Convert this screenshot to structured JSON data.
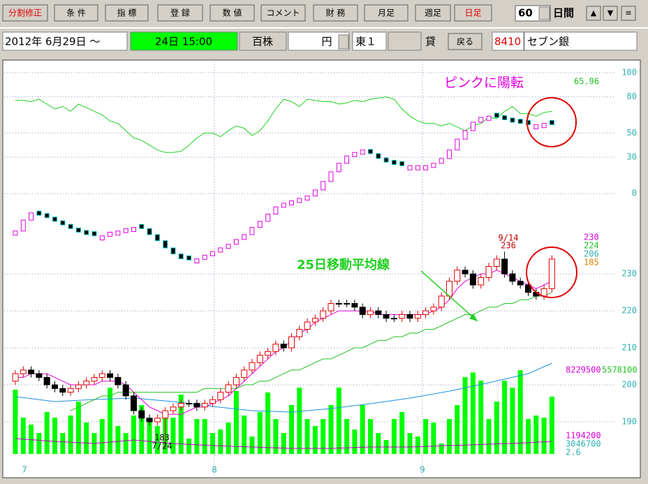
{
  "toolbar": {
    "buttons": [
      "分割修正",
      "条 件",
      "指 標",
      "登 録",
      "数 値",
      "コメント",
      "財 務",
      "月足",
      "週足",
      "日足"
    ],
    "period": "60",
    "period_unit": "日間",
    "arrows": [
      "▲",
      "▼",
      "≡"
    ]
  },
  "infobar": {
    "date": "2012年 6月29日 ～",
    "time": "24日 15:00",
    "unit": "百株",
    "currency": "円",
    "market": "東１",
    "lending": "貸",
    "back": "戻る",
    "code": "8410",
    "name": "セブン銀"
  },
  "chart": {
    "annotation": "ピンクに陽転",
    "upper_value_label": 65.96,
    "upper_lim": [
      -56,
      100
    ],
    "upper_ticks": [
      100,
      80,
      50,
      30,
      0
    ],
    "price_lim": [
      181.3,
      247.4
    ],
    "price_ticks": [
      230,
      220,
      210,
      200,
      190
    ],
    "price_labels": [
      230,
      224,
      206,
      185
    ],
    "ma_annotation": "25日移動平均線",
    "high_note": {
      "date": "9/14",
      "value": 236
    },
    "low_note": {
      "value": 183,
      "date": "7/24"
    },
    "x_labels": [
      "7",
      "8",
      "9"
    ],
    "candles": {
      "open": [
        201,
        203,
        204,
        203,
        202,
        200,
        199,
        198,
        199,
        200,
        201,
        202,
        203,
        202,
        200,
        197,
        193,
        191,
        190,
        191,
        193,
        194,
        195,
        195,
        194,
        195,
        196,
        198,
        200,
        202,
        204,
        206,
        208,
        209,
        211,
        210,
        213,
        215,
        217,
        218,
        220,
        222,
        222,
        222,
        221,
        219,
        220,
        219,
        218,
        218,
        219,
        218,
        219,
        220,
        221,
        224,
        228,
        231,
        230,
        227,
        229,
        232,
        234,
        230,
        228,
        227,
        225,
        224,
        226
      ],
      "high": [
        204,
        205,
        205,
        204,
        203,
        201,
        200,
        200,
        201,
        202,
        203,
        204,
        204,
        203,
        201,
        198,
        194,
        192,
        192,
        194,
        195,
        196,
        196,
        196,
        196,
        197,
        199,
        201,
        203,
        205,
        207,
        209,
        210,
        212,
        212,
        214,
        216,
        218,
        219,
        221,
        223,
        223,
        223,
        223,
        222,
        221,
        221,
        220,
        219,
        220,
        220,
        220,
        221,
        222,
        225,
        229,
        232,
        232,
        231,
        230,
        233,
        235,
        236,
        231,
        229,
        228,
        226,
        227,
        235
      ],
      "low": [
        200,
        202,
        202,
        201,
        199,
        198,
        197,
        197,
        198,
        199,
        200,
        201,
        201,
        199,
        196,
        192,
        190,
        189,
        189,
        183,
        192,
        193,
        194,
        193,
        193,
        194,
        195,
        197,
        199,
        201,
        203,
        205,
        207,
        208,
        209,
        209,
        212,
        214,
        216,
        217,
        219,
        221,
        221,
        220,
        218,
        218,
        218,
        217,
        217,
        217,
        217,
        217,
        218,
        219,
        220,
        223,
        227,
        229,
        226,
        226,
        228,
        231,
        229,
        227,
        226,
        224,
        223,
        223,
        225
      ],
      "close": [
        203,
        204,
        203,
        202,
        200,
        199,
        198,
        199,
        200,
        201,
        202,
        203,
        202,
        200,
        197,
        193,
        191,
        190,
        191,
        193,
        194,
        195,
        195,
        194,
        195,
        196,
        198,
        200,
        202,
        204,
        206,
        208,
        209,
        211,
        210,
        213,
        215,
        217,
        218,
        220,
        222,
        222,
        222,
        221,
        219,
        220,
        219,
        218,
        218,
        219,
        218,
        219,
        220,
        221,
        224,
        228,
        231,
        230,
        227,
        229,
        232,
        234,
        230,
        228,
        227,
        225,
        224,
        226,
        234
      ]
    },
    "boxes": [
      -31,
      -22,
      -16,
      -18,
      -20,
      -23,
      -26,
      -29,
      -32,
      -34,
      -35,
      -35,
      -32,
      -31,
      -29,
      -28,
      -29,
      -34,
      -39,
      -45,
      -50,
      -54,
      -55,
      -54,
      -51,
      -48,
      -45,
      -42,
      -38,
      -34,
      -28,
      -23,
      -17,
      -11,
      -8,
      -6,
      -4,
      -2,
      3,
      10,
      18,
      25,
      31,
      34,
      36,
      33,
      29,
      26,
      24,
      23,
      23,
      23,
      23,
      25,
      29,
      36,
      45,
      52,
      59,
      63,
      64,
      63,
      61,
      59,
      58,
      57,
      57,
      58,
      57
    ],
    "stoch": [
      77,
      77,
      76,
      78,
      74,
      70,
      72,
      68,
      74,
      71,
      68,
      65,
      60,
      58,
      52,
      46,
      44,
      40,
      36,
      34,
      34,
      35,
      40,
      46,
      50,
      50,
      47,
      52,
      56,
      54,
      48,
      52,
      60,
      70,
      78,
      76,
      72,
      78,
      77,
      76,
      76,
      74,
      75,
      77,
      76,
      78,
      79,
      80,
      78,
      70,
      64,
      60,
      58,
      58,
      56,
      58,
      55,
      52,
      56,
      58,
      63,
      62,
      68,
      72,
      66,
      66,
      64,
      67,
      68
    ],
    "ma_short": [
      202,
      202,
      203,
      203,
      203,
      202,
      201,
      200,
      200,
      200,
      200,
      201,
      201,
      201,
      200,
      198,
      196,
      194,
      193,
      192,
      192,
      192,
      193,
      194,
      194,
      195,
      196,
      197,
      199,
      201,
      203,
      205,
      207,
      209,
      210,
      212,
      214,
      215,
      217,
      218,
      219,
      220,
      220,
      220,
      220,
      220,
      219,
      219,
      219,
      219,
      219,
      219,
      219,
      220,
      221,
      223,
      226,
      228,
      229,
      230,
      230,
      231,
      230,
      229,
      228,
      227,
      226,
      227,
      228
    ],
    "ma_long": [
      null,
      null,
      null,
      null,
      null,
      null,
      null,
      193,
      194,
      195,
      196,
      197,
      197,
      198,
      198,
      198,
      198,
      198,
      198,
      198,
      198,
      198,
      198,
      198,
      199,
      199,
      199,
      199,
      199,
      200,
      200,
      201,
      201,
      202,
      203,
      204,
      204,
      205,
      206,
      207,
      207,
      208,
      209,
      210,
      210,
      211,
      212,
      212,
      213,
      213,
      214,
      214,
      215,
      215,
      216,
      217,
      218,
      219,
      219,
      220,
      221,
      221,
      222,
      222,
      223,
      223,
      224,
      224,
      225
    ],
    "vlim": [
      0,
      8229500
    ],
    "volume": [
      6311000,
      3567000,
      2881000,
      2058000,
      4116000,
      3567000,
      2058000,
      3773000,
      5145000,
      3087000,
      2058000,
      3430000,
      6517000,
      2744000,
      2058000,
      3773000,
      4802000,
      3430000,
      2744000,
      4116000,
      3567000,
      5831000,
      1509000,
      3430000,
      3430000,
      2058000,
      2401000,
      3087000,
      6174000,
      3773000,
      1715000,
      4116000,
      6037000,
      3430000,
      2058000,
      4802000,
      6517000,
      3430000,
      2744000,
      3430000,
      4802000,
      6517000,
      3430000,
      2401000,
      4802000,
      3430000,
      2058000,
      1372000,
      3430000,
      4116000,
      2058000,
      1715000,
      3430000,
      3087000,
      1029000,
      3430000,
      4802000,
      7546000,
      8000000,
      7203000,
      3430000,
      5145000,
      7203000,
      6517000,
      8229500,
      3430000,
      3773000,
      3567000,
      5625000
    ],
    "vol_labels": [
      8229500,
      5578100,
      1194200,
      3046700,
      2.6
    ],
    "vol_ma": {
      "x": [
        0,
        5,
        10,
        15,
        20,
        25,
        30,
        35,
        40,
        45,
        50,
        55,
        60,
        65,
        68
      ],
      "long": [
        5625000,
        5145000,
        5351000,
        5488000,
        5145000,
        4665000,
        4253000,
        4116000,
        4459000,
        4939000,
        5488000,
        6174000,
        6997000,
        7889000,
        8918000
      ],
      "short": [
        1509000,
        1235000,
        1029000,
        1372000,
        1029000,
        823000,
        686000,
        549000,
        549000,
        686000,
        686000,
        823000,
        960000,
        1098000,
        1235000
      ]
    }
  }
}
